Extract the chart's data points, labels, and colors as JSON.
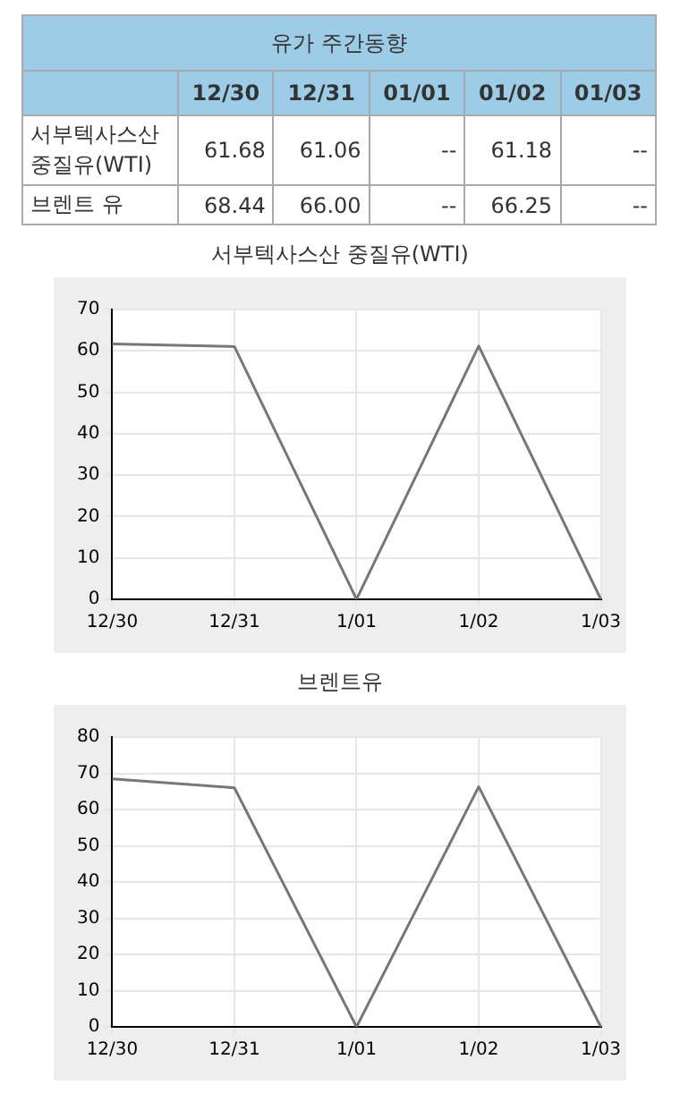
{
  "chart_data": [
    {
      "type": "other",
      "title": "유가 주간동향",
      "categories": [
        "12/30",
        "12/31",
        "01/01",
        "01/02",
        "01/03"
      ],
      "series": [
        {
          "name": "서부텍사스산 중질유(WTI)",
          "values": [
            61.68,
            61.06,
            null,
            61.18,
            null
          ],
          "value_labels": [
            "61.68",
            "61.06",
            "--",
            "61.18",
            "--"
          ]
        },
        {
          "name": "브렌트 유",
          "values": [
            68.44,
            66.0,
            null,
            66.25,
            null
          ],
          "value_labels": [
            "68.44",
            "66.00",
            "--",
            "66.25",
            "--"
          ]
        }
      ]
    },
    {
      "type": "line",
      "title": "서부텍사스산 중질유(WTI)",
      "categories": [
        "12/30",
        "12/31",
        "1/01",
        "1/02",
        "1/03"
      ],
      "series": [
        {
          "color": "#777777",
          "values": [
            61.68,
            61.06,
            0,
            61.18,
            0
          ]
        }
      ],
      "ylim": [
        0,
        70
      ],
      "yticks": [
        0,
        10,
        20,
        30,
        40,
        50,
        60,
        70
      ],
      "grid": true,
      "legend": false,
      "marker": "none"
    },
    {
      "type": "line",
      "title": "브렌트유",
      "categories": [
        "12/30",
        "12/31",
        "1/01",
        "1/02",
        "1/03"
      ],
      "series": [
        {
          "color": "#777777",
          "values": [
            68.44,
            66.0,
            0,
            66.25,
            0
          ]
        }
      ],
      "ylim": [
        0,
        80
      ],
      "yticks": [
        0,
        10,
        20,
        30,
        40,
        50,
        60,
        70,
        80
      ],
      "grid": true,
      "legend": false,
      "marker": "none"
    }
  ]
}
